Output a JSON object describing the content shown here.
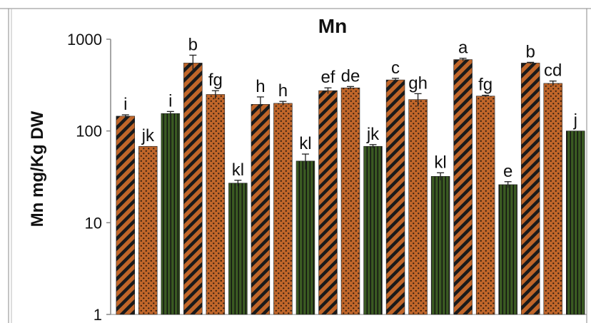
{
  "chart_data": {
    "type": "bar",
    "title": "Mn",
    "ylabel": "Mn mg/Kg DW",
    "xlabel": "",
    "yscale": "log",
    "ylim": [
      1,
      1000
    ],
    "yticks": [
      "1",
      "10",
      "100",
      "1000"
    ],
    "grid": false,
    "legend": "none",
    "pattern_colors": {
      "stripe": "#c0662a",
      "dots": "#c0662a",
      "vertical": "#3a5a22"
    },
    "bars": [
      {
        "value": 145,
        "error": 5,
        "letter": "i",
        "pattern": "stripe"
      },
      {
        "value": 68,
        "error": 0,
        "letter": "jk",
        "pattern": "dots"
      },
      {
        "value": 155,
        "error": 8,
        "letter": "i",
        "pattern": "vertical"
      },
      {
        "value": 550,
        "error": 120,
        "letter": "b",
        "pattern": "stripe"
      },
      {
        "value": 250,
        "error": 25,
        "letter": "fg",
        "pattern": "dots"
      },
      {
        "value": 27,
        "error": 2,
        "letter": "kl",
        "pattern": "vertical"
      },
      {
        "value": 195,
        "error": 40,
        "letter": "h",
        "pattern": "stripe"
      },
      {
        "value": 200,
        "error": 10,
        "letter": "h",
        "pattern": "dots"
      },
      {
        "value": 47,
        "error": 9,
        "letter": "kl",
        "pattern": "vertical"
      },
      {
        "value": 275,
        "error": 20,
        "letter": "ef",
        "pattern": "stripe"
      },
      {
        "value": 295,
        "error": 10,
        "letter": "de",
        "pattern": "dots"
      },
      {
        "value": 68,
        "error": 3,
        "letter": "jk",
        "pattern": "vertical"
      },
      {
        "value": 360,
        "error": 15,
        "letter": "c",
        "pattern": "stripe"
      },
      {
        "value": 220,
        "error": 35,
        "letter": "gh",
        "pattern": "dots"
      },
      {
        "value": 32,
        "error": 3,
        "letter": "kl",
        "pattern": "vertical"
      },
      {
        "value": 600,
        "error": 20,
        "letter": "a",
        "pattern": "stripe"
      },
      {
        "value": 240,
        "error": 5,
        "letter": "fg",
        "pattern": "dots"
      },
      {
        "value": 26,
        "error": 2,
        "letter": "e",
        "pattern": "vertical"
      },
      {
        "value": 550,
        "error": 10,
        "letter": "b",
        "pattern": "stripe"
      },
      {
        "value": 330,
        "error": 20,
        "letter": "cd",
        "pattern": "dots"
      },
      {
        "value": 100,
        "error": 0,
        "letter": "j",
        "pattern": "vertical"
      }
    ]
  }
}
